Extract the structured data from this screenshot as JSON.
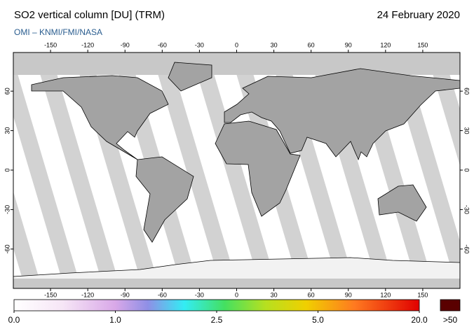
{
  "header": {
    "title": "SO2 vertical column [DU] (TRM)",
    "subtitle": "OMI  –  KNMI/FMI/NASA",
    "date": "24 February 2020"
  },
  "map": {
    "lon_ticks": [
      -150,
      -120,
      -90,
      -60,
      -30,
      0,
      30,
      60,
      90,
      120,
      150
    ],
    "lat_ticks": [
      -60,
      -30,
      0,
      30,
      60
    ]
  },
  "colorbar": {
    "ticks": [
      {
        "value": 0,
        "label": "0.0"
      },
      {
        "value": 1,
        "label": "1.0"
      },
      2.5,
      {
        "value": 5,
        "label": "5.0"
      },
      {
        "value": 20,
        "label": "20.0"
      }
    ],
    "overflow_label": ">50"
  }
}
